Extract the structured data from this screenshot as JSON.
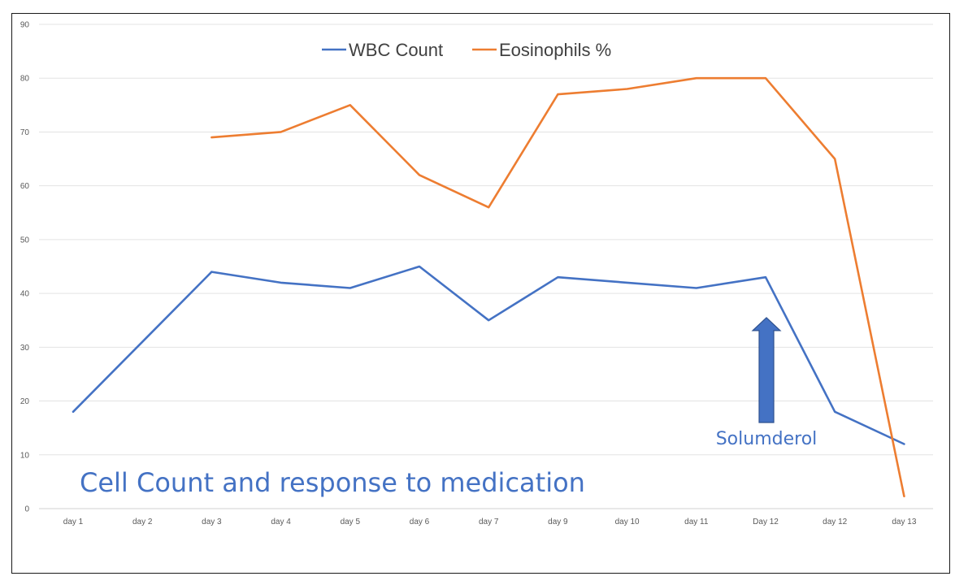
{
  "chart_data": {
    "type": "line",
    "title": "Cell Count and response to medication",
    "xlabel": "",
    "ylabel": "",
    "categories": [
      "day 1",
      "day 2",
      "day 3",
      "day 4",
      "day 5",
      "day 6",
      "day 7",
      "day 9",
      "day 10",
      "day 11",
      "Day 12",
      "day 12",
      "day 13"
    ],
    "ylim": [
      0,
      90
    ],
    "yticks": [
      0,
      10,
      20,
      30,
      40,
      50,
      60,
      70,
      80,
      90
    ],
    "grid": true,
    "legend_position": "top-center",
    "series": [
      {
        "name": "WBC Count",
        "color": "#4472c4",
        "values": [
          18,
          31,
          44,
          42,
          41,
          45,
          35,
          43,
          42,
          41,
          43,
          18,
          12
        ]
      },
      {
        "name": "Eosinophils %",
        "color": "#ed7d31",
        "values": [
          null,
          null,
          69,
          70,
          75,
          62,
          56,
          77,
          78,
          80,
          80,
          65,
          2.3
        ]
      }
    ],
    "annotations": [
      {
        "text": "Solumderol",
        "type": "arrow-up",
        "category_index": 10,
        "y_from": 16,
        "y_to": 35.5,
        "color": "#4472c4"
      }
    ]
  }
}
